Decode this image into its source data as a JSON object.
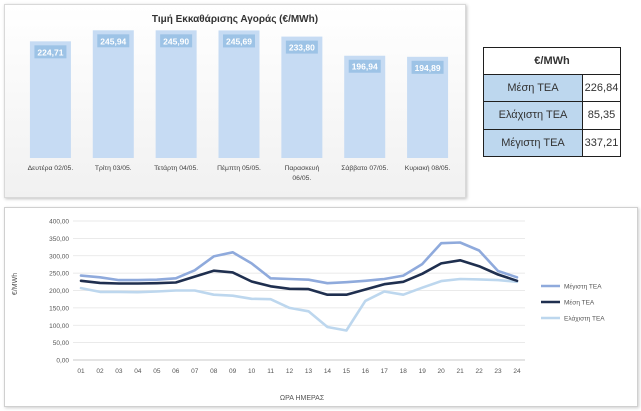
{
  "chart_data": [
    {
      "type": "bar",
      "title": "Τιμή Εκκαθάρισης Αγοράς (€/MWh)",
      "categories": [
        "Δευτέρα 02/05.",
        "Τρίτη 03/05.",
        "Τετάρτη 04/05.",
        "Πέμπτη 05/05.",
        "Παρασκευή 06/05.",
        "Σάββατο 07/05.",
        "Κυριακή 08/05."
      ],
      "values": [
        224.71,
        245.94,
        245.9,
        245.69,
        233.8,
        196.94,
        194.89
      ],
      "value_labels": [
        "224,71",
        "245,94",
        "245,90",
        "245,69",
        "233,80",
        "196,94",
        "194,89"
      ],
      "bar_color": "#c6dbf3",
      "label_box_color": "#9dc3e6",
      "ylim": [
        0,
        260
      ]
    },
    {
      "type": "line",
      "x": [
        "01",
        "02",
        "03",
        "04",
        "05",
        "06",
        "07",
        "08",
        "09",
        "10",
        "11",
        "12",
        "13",
        "14",
        "15",
        "16",
        "17",
        "18",
        "19",
        "20",
        "21",
        "22",
        "23",
        "24"
      ],
      "xlabel": "ΩΡΑ ΗΜΕΡΑΣ",
      "ylabel": "€/MWh",
      "ylim": [
        0,
        400
      ],
      "yticks": [
        "0,00",
        "50,00",
        "100,00",
        "150,00",
        "200,00",
        "250,00",
        "300,00",
        "350,00",
        "400,00"
      ],
      "grid": true,
      "legend_position": "right",
      "series": [
        {
          "name": "Μέγιστη ΤΕΑ",
          "color": "#8faadc",
          "values": [
            243,
            238,
            230,
            230,
            231,
            235,
            258,
            298,
            310,
            278,
            235,
            233,
            231,
            221,
            224,
            228,
            233,
            243,
            276,
            336,
            338,
            315,
            256,
            238
          ]
        },
        {
          "name": "Μέση ΤΕΑ",
          "color": "#1f2f4f",
          "values": [
            228,
            222,
            220,
            220,
            221,
            223,
            240,
            257,
            252,
            226,
            212,
            205,
            204,
            188,
            188,
            203,
            218,
            225,
            248,
            278,
            287,
            270,
            246,
            228
          ]
        },
        {
          "name": "Ελάχιστη ΤΕΑ",
          "color": "#bdd7ee",
          "values": [
            207,
            196,
            196,
            195,
            197,
            200,
            200,
            188,
            185,
            176,
            175,
            150,
            140,
            95,
            85,
            170,
            197,
            188,
            208,
            227,
            233,
            232,
            230,
            225
          ]
        }
      ]
    }
  ],
  "stats_table": {
    "header": "€/MWh",
    "rows": [
      {
        "label": "Μέση ΤΕΑ",
        "value": "226,84"
      },
      {
        "label": "Ελάχιστη ΤΕΑ",
        "value": "85,35"
      },
      {
        "label": "Μέγιστη ΤΕΑ",
        "value": "337,21"
      }
    ]
  }
}
